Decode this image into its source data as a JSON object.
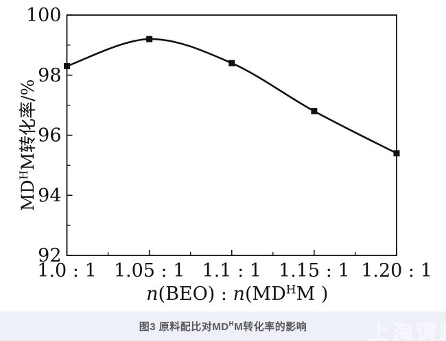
{
  "chart_data": {
    "type": "line",
    "x_tick_labels": [
      "1.0 : 1",
      "1.05 : 1",
      "1.1 : 1",
      "1.15 : 1",
      "1.20 : 1"
    ],
    "x_values": [
      1.0,
      1.05,
      1.1,
      1.15,
      1.2
    ],
    "series": [
      {
        "name": "MD^H M conversion rate",
        "values": [
          98.3,
          99.2,
          98.4,
          96.8,
          95.4
        ]
      }
    ],
    "xlabel_plain": "n(BEO) : n(MD^H M )",
    "ylabel_plain": "MD^H M转化率/%",
    "xlabel_rich": [
      {
        "t": "n",
        "i": true
      },
      {
        "t": "(BEO) : "
      },
      {
        "t": "n",
        "i": true
      },
      {
        "t": "(MD"
      },
      {
        "t": "H",
        "sup": true
      },
      {
        "t": "M )"
      }
    ],
    "ylabel_rich": [
      {
        "t": "MD"
      },
      {
        "t": "H",
        "sup": true
      },
      {
        "t": "M转化率/%"
      }
    ],
    "ylim": [
      92,
      100
    ],
    "xlim": [
      1.0,
      1.2
    ],
    "y_major_ticks": [
      92,
      94,
      96,
      98,
      100
    ],
    "y_minor_ticks": [
      93,
      95,
      97,
      99
    ],
    "x_minor_ticks": [
      1.025,
      1.075,
      1.125,
      1.175
    ],
    "grid": false,
    "legend": false,
    "marker": "square"
  },
  "caption": {
    "plain": "图3 原料配比对MD^H M转化率的影响",
    "rich": [
      {
        "t": "图3 原料配比对MD"
      },
      {
        "t": "H",
        "sup": true
      },
      {
        "t": "M转化率的影响"
      }
    ]
  },
  "watermark": {
    "text": "上海谓载"
  },
  "colors": {
    "line": "#111111",
    "axis": "#111111",
    "text": "#111111",
    "footer_bg": "#eef0f8",
    "caption_text": "#58595b",
    "watermark_text": "#f6f8fd",
    "background": "#ffffff"
  }
}
